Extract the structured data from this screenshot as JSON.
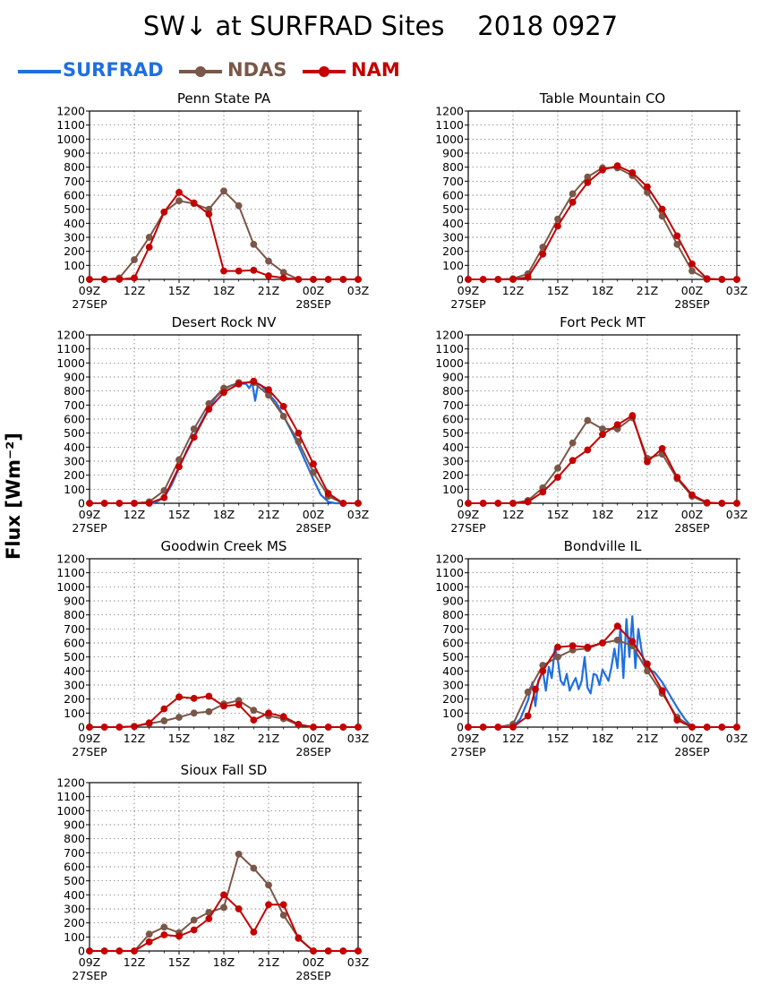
{
  "title": "SW↓ at SURFRAD Sites    2018 0927",
  "ylabel": "Flux [Wm⁻²]",
  "legend": [
    {
      "name": "SURFRAD",
      "color": "#1f6fe0"
    },
    {
      "name": "NDAS",
      "color": "#7a5748"
    },
    {
      "name": "NAM",
      "color": "#c40000"
    }
  ],
  "axes": {
    "y_ticks": [
      "0",
      "100",
      "200",
      "300",
      "400",
      "500",
      "600",
      "700",
      "800",
      "900",
      "1000",
      "1100",
      "1200"
    ],
    "x_ticks": [
      "09Z",
      "12Z",
      "15Z",
      "18Z",
      "21Z",
      "00Z",
      "03Z"
    ],
    "x_sublabels": [
      "27SEP",
      "28SEP"
    ]
  },
  "chart_data": [
    {
      "type": "line",
      "title": "Penn State PA",
      "xlim": [
        9,
        27
      ],
      "ylim": [
        0,
        1200
      ],
      "series": [
        {
          "name": "NDAS",
          "x": [
            9,
            10,
            11,
            12,
            13,
            14,
            15,
            16,
            17,
            18,
            19,
            20,
            21,
            22,
            23,
            24,
            25,
            26,
            27
          ],
          "y": [
            0,
            0,
            10,
            140,
            300,
            480,
            560,
            540,
            500,
            630,
            525,
            250,
            130,
            50,
            0,
            0,
            0,
            0,
            0
          ]
        },
        {
          "name": "NAM",
          "x": [
            9,
            10,
            11,
            12,
            13,
            14,
            15,
            16,
            17,
            18,
            19,
            20,
            21,
            22,
            23,
            24,
            25,
            26,
            27
          ],
          "y": [
            0,
            0,
            0,
            10,
            230,
            480,
            620,
            545,
            465,
            60,
            60,
            65,
            25,
            10,
            0,
            0,
            0,
            0,
            0
          ]
        }
      ]
    },
    {
      "type": "line",
      "title": "Table Mountain CO",
      "xlim": [
        9,
        27
      ],
      "ylim": [
        0,
        1200
      ],
      "series": [
        {
          "name": "NDAS",
          "x": [
            9,
            10,
            11,
            12,
            13,
            14,
            15,
            16,
            17,
            18,
            19,
            20,
            21,
            22,
            23,
            24,
            25,
            26,
            27
          ],
          "y": [
            0,
            0,
            0,
            5,
            40,
            230,
            430,
            610,
            730,
            795,
            795,
            740,
            620,
            450,
            250,
            60,
            0,
            0,
            0
          ]
        },
        {
          "name": "NAM",
          "x": [
            9,
            10,
            11,
            12,
            13,
            14,
            15,
            16,
            17,
            18,
            19,
            20,
            21,
            22,
            23,
            24,
            25,
            26,
            27
          ],
          "y": [
            0,
            0,
            0,
            0,
            15,
            180,
            380,
            550,
            690,
            780,
            810,
            760,
            660,
            500,
            310,
            110,
            5,
            0,
            0
          ]
        }
      ]
    },
    {
      "type": "line",
      "title": "Desert Rock NV",
      "xlim": [
        9,
        27
      ],
      "ylim": [
        0,
        1200
      ],
      "series": [
        {
          "name": "SURFRAD",
          "x": [
            13,
            13.5,
            14,
            14.5,
            15,
            15.5,
            16,
            16.5,
            17,
            17.5,
            18,
            18.5,
            19,
            19.5,
            19.7,
            19.9,
            20.1,
            20.3,
            20.5,
            21,
            21.5,
            22,
            22.5,
            23,
            23.5,
            24,
            24.5,
            25,
            25.5,
            26
          ],
          "y": [
            0,
            10,
            40,
            130,
            250,
            370,
            480,
            580,
            680,
            760,
            810,
            840,
            855,
            850,
            820,
            860,
            730,
            850,
            840,
            780,
            720,
            620,
            520,
            410,
            290,
            170,
            60,
            10,
            0,
            0
          ]
        },
        {
          "name": "NDAS",
          "x": [
            9,
            10,
            11,
            12,
            13,
            14,
            15,
            16,
            17,
            18,
            19,
            20,
            21,
            22,
            23,
            24,
            25,
            26,
            27
          ],
          "y": [
            0,
            0,
            0,
            0,
            10,
            90,
            310,
            530,
            710,
            820,
            860,
            860,
            770,
            620,
            440,
            220,
            50,
            0,
            0
          ]
        },
        {
          "name": "NAM",
          "x": [
            9,
            10,
            11,
            12,
            13,
            14,
            15,
            16,
            17,
            18,
            19,
            20,
            21,
            22,
            23,
            24,
            25,
            26,
            27
          ],
          "y": [
            0,
            0,
            0,
            0,
            0,
            40,
            260,
            470,
            670,
            790,
            850,
            870,
            810,
            690,
            500,
            280,
            70,
            0,
            0
          ]
        }
      ]
    },
    {
      "type": "line",
      "title": "Fort Peck MT",
      "xlim": [
        9,
        27
      ],
      "ylim": [
        0,
        1200
      ],
      "series": [
        {
          "name": "NDAS",
          "x": [
            9,
            10,
            11,
            12,
            13,
            14,
            15,
            16,
            17,
            18,
            19,
            20,
            21,
            22,
            23,
            24,
            25,
            26,
            27
          ],
          "y": [
            0,
            0,
            0,
            0,
            20,
            110,
            250,
            430,
            590,
            530,
            530,
            610,
            320,
            350,
            175,
            50,
            0,
            0,
            0
          ]
        },
        {
          "name": "NAM",
          "x": [
            9,
            10,
            11,
            12,
            13,
            14,
            15,
            16,
            17,
            18,
            19,
            20,
            21,
            22,
            23,
            24,
            25,
            26,
            27
          ],
          "y": [
            0,
            0,
            0,
            0,
            10,
            80,
            185,
            305,
            380,
            490,
            560,
            625,
            295,
            390,
            185,
            60,
            5,
            0,
            0
          ]
        }
      ]
    },
    {
      "type": "line",
      "title": "Goodwin Creek MS",
      "xlim": [
        9,
        27
      ],
      "ylim": [
        0,
        1200
      ],
      "series": [
        {
          "name": "NDAS",
          "x": [
            9,
            10,
            11,
            12,
            13,
            14,
            15,
            16,
            17,
            18,
            19,
            20,
            21,
            22,
            23,
            24,
            25,
            26,
            27
          ],
          "y": [
            0,
            0,
            0,
            5,
            25,
            45,
            70,
            100,
            110,
            165,
            190,
            120,
            80,
            60,
            15,
            0,
            0,
            0,
            0
          ]
        },
        {
          "name": "NAM",
          "x": [
            9,
            10,
            11,
            12,
            13,
            14,
            15,
            16,
            17,
            18,
            19,
            20,
            21,
            22,
            23,
            24,
            25,
            26,
            27
          ],
          "y": [
            0,
            0,
            0,
            5,
            30,
            130,
            215,
            205,
            220,
            150,
            160,
            50,
            100,
            75,
            20,
            0,
            0,
            0,
            0
          ]
        }
      ]
    },
    {
      "type": "line",
      "title": "Bondville IL",
      "xlim": [
        9,
        27
      ],
      "ylim": [
        0,
        1200
      ],
      "series": [
        {
          "name": "SURFRAD",
          "x": [
            12,
            12.5,
            13,
            13.3,
            13.5,
            13.7,
            14,
            14.2,
            14.4,
            14.6,
            14.8,
            15,
            15.2,
            15.4,
            15.6,
            15.8,
            16,
            16.2,
            16.4,
            16.6,
            16.8,
            17,
            17.2,
            17.4,
            17.6,
            17.8,
            18,
            18.2,
            18.4,
            18.6,
            18.8,
            19,
            19.2,
            19.4,
            19.6,
            19.8,
            20,
            20.2,
            20.4,
            20.6,
            20.8,
            21,
            21.5,
            22,
            22.5,
            23,
            23.5,
            24,
            24.5
          ],
          "y": [
            0,
            60,
            190,
            320,
            150,
            330,
            400,
            260,
            430,
            350,
            560,
            480,
            330,
            300,
            380,
            260,
            310,
            350,
            270,
            330,
            500,
            280,
            240,
            380,
            370,
            300,
            410,
            370,
            330,
            430,
            560,
            420,
            720,
            350,
            770,
            500,
            790,
            420,
            700,
            560,
            440,
            420,
            390,
            320,
            230,
            140,
            60,
            0,
            0
          ]
        },
        {
          "name": "NDAS",
          "x": [
            9,
            10,
            11,
            12,
            13,
            14,
            15,
            16,
            17,
            18,
            19,
            20,
            21,
            22,
            23,
            24,
            25,
            26,
            27
          ],
          "y": [
            0,
            0,
            0,
            20,
            250,
            440,
            500,
            550,
            560,
            600,
            620,
            580,
            400,
            240,
            70,
            0,
            0,
            0,
            0
          ]
        },
        {
          "name": "NAM",
          "x": [
            9,
            10,
            11,
            12,
            13,
            13.5,
            14,
            15,
            16,
            17,
            18,
            19,
            20,
            21,
            22,
            23,
            24,
            25,
            26,
            27
          ],
          "y": [
            0,
            0,
            0,
            0,
            80,
            270,
            400,
            570,
            580,
            570,
            600,
            720,
            610,
            450,
            260,
            50,
            0,
            0,
            0,
            0
          ]
        }
      ]
    },
    {
      "type": "line",
      "title": "Sioux Fall SD",
      "xlim": [
        9,
        27
      ],
      "ylim": [
        0,
        1200
      ],
      "series": [
        {
          "name": "NDAS",
          "x": [
            9,
            10,
            11,
            12,
            13,
            14,
            15,
            16,
            17,
            18,
            19,
            20,
            21,
            22,
            23,
            24,
            25,
            26,
            27
          ],
          "y": [
            0,
            0,
            0,
            0,
            120,
            170,
            130,
            220,
            275,
            310,
            690,
            590,
            470,
            255,
            95,
            0,
            0,
            0,
            0
          ]
        },
        {
          "name": "NAM",
          "x": [
            9,
            10,
            11,
            12,
            13,
            14,
            15,
            16,
            17,
            18,
            19,
            20,
            21,
            22,
            23,
            24,
            25,
            26,
            27
          ],
          "y": [
            0,
            0,
            0,
            0,
            65,
            115,
            105,
            150,
            230,
            400,
            300,
            135,
            330,
            330,
            90,
            0,
            0,
            0,
            0
          ]
        }
      ]
    }
  ]
}
